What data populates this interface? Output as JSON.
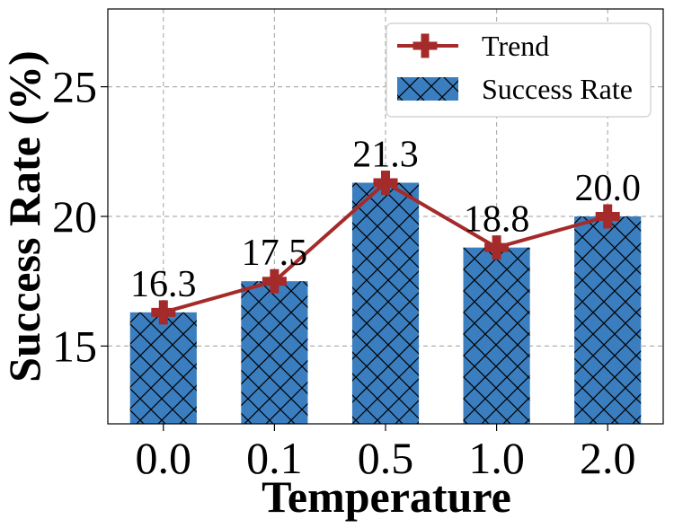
{
  "chart_data": {
    "type": "bar",
    "xlabel": "Temperature",
    "ylabel": "Success Rate (%)",
    "categories": [
      "0.0",
      "0.1",
      "0.5",
      "1.0",
      "2.0"
    ],
    "series": [
      {
        "name": "Success Rate",
        "type": "bar",
        "values": [
          16.3,
          17.5,
          21.3,
          18.8,
          20.0
        ],
        "color": "#3a7ebf",
        "hatch": "cross"
      },
      {
        "name": "Trend",
        "type": "line",
        "values": [
          16.3,
          17.5,
          21.3,
          18.8,
          20.0
        ],
        "color": "#a52a2a",
        "marker": "plus"
      }
    ],
    "data_labels": [
      "16.3",
      "17.5",
      "21.3",
      "18.8",
      "20.0"
    ],
    "yticks": [
      "15",
      "20",
      "25"
    ],
    "ylim": [
      12,
      28
    ],
    "grid": true,
    "legend_position": "top-right"
  }
}
